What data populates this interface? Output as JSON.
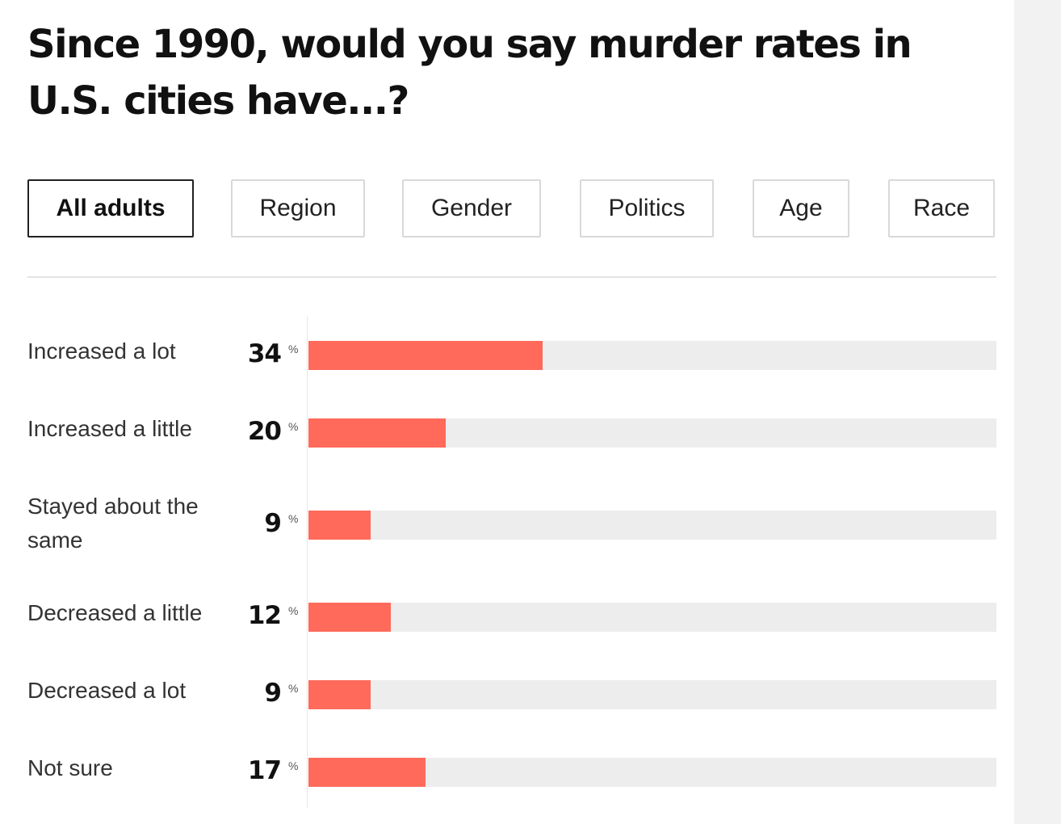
{
  "chart_data": {
    "type": "bar",
    "title": "Since 1990, would you say murder rates in U.S. cities have...?",
    "categories": [
      "Increased a lot",
      "Increased a little",
      "Stayed about the same",
      "Decreased a little",
      "Decreased a lot",
      "Not sure"
    ],
    "values": [
      34,
      20,
      9,
      12,
      9,
      17
    ],
    "value_suffix": "%",
    "xlim": [
      0,
      100
    ],
    "xlabel": "",
    "ylabel": "",
    "orientation": "horizontal",
    "bar_color": "#ff6a5a",
    "track_color": "#ededed"
  },
  "tabs": [
    {
      "label": "All adults",
      "active": true
    },
    {
      "label": "Region",
      "active": false
    },
    {
      "label": "Gender",
      "active": false
    },
    {
      "label": "Politics",
      "active": false
    },
    {
      "label": "Age",
      "active": false
    },
    {
      "label": "Race",
      "active": false
    }
  ]
}
